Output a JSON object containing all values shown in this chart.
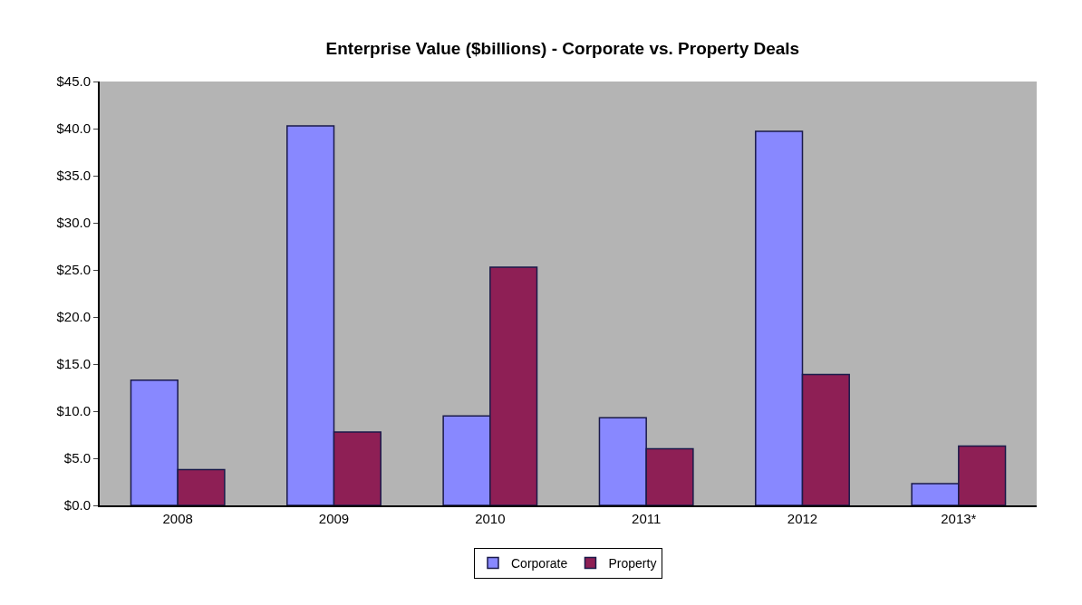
{
  "chart_data": {
    "type": "bar",
    "title": "Enterprise Value ($billions) - Corporate vs. Property Deals",
    "categories": [
      "2008",
      "2009",
      "2010",
      "2011",
      "2012",
      "2013*"
    ],
    "series": [
      {
        "name": "Corporate",
        "color": "#8888ff",
        "values": [
          13.3,
          40.3,
          9.5,
          9.3,
          39.7,
          2.3
        ]
      },
      {
        "name": "Property",
        "color": "#8e1f55",
        "values": [
          3.8,
          7.8,
          25.3,
          6.0,
          13.9,
          6.3
        ]
      }
    ],
    "ylim": [
      0,
      45
    ],
    "yticks": [
      {
        "value": 0,
        "label": "$0.0"
      },
      {
        "value": 5,
        "label": "$5.0"
      },
      {
        "value": 10,
        "label": "$10.0"
      },
      {
        "value": 15,
        "label": "$15.0"
      },
      {
        "value": 20,
        "label": "$20.0"
      },
      {
        "value": 25,
        "label": "$25.0"
      },
      {
        "value": 30,
        "label": "$30.0"
      },
      {
        "value": 35,
        "label": "$35.0"
      },
      {
        "value": 40,
        "label": "$40.0"
      },
      {
        "value": 45,
        "label": "$45.0"
      }
    ],
    "grid": false,
    "legend": "bottom"
  }
}
